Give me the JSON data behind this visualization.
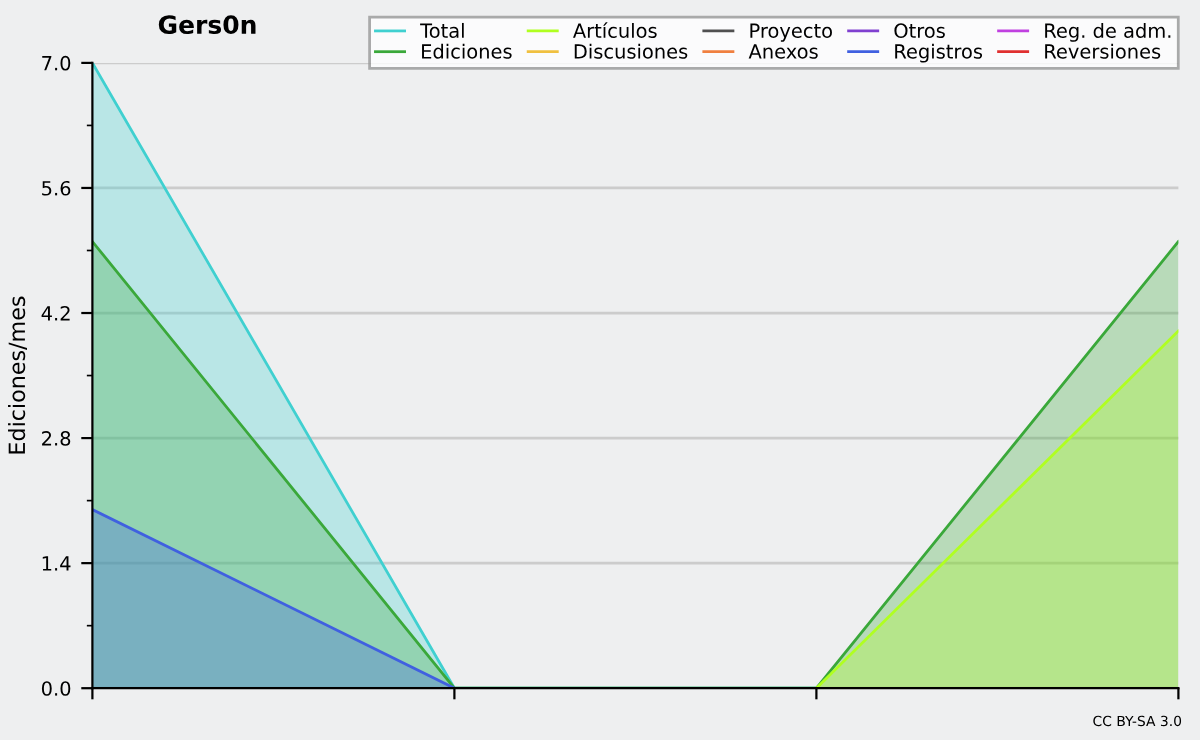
{
  "chart_data": {
    "type": "area",
    "title": "Gers0n",
    "ylabel": "Ediciones/mes",
    "categories": [
      null,
      null,
      null,
      null
    ],
    "ylim": [
      0,
      7
    ],
    "yticks": [
      {
        "value": 0,
        "label": "0.0"
      },
      {
        "value": 1.4,
        "label": "1.4"
      },
      {
        "value": 2.8,
        "label": "2.8"
      },
      {
        "value": 4.2,
        "label": "4.2"
      },
      {
        "value": 5.6,
        "label": "5.6"
      },
      {
        "value": 7,
        "label": "7.0"
      }
    ],
    "grid": "y",
    "legend": "top right",
    "annotations": [
      "CC BY-SA 3.0"
    ],
    "series": [
      {
        "name": "Total",
        "color": "#40d0d0",
        "values": [
          7,
          0,
          0,
          null
        ]
      },
      {
        "name": "Ediciones",
        "color": "#3aa83a",
        "values": [
          5,
          0,
          0,
          5
        ]
      },
      {
        "name": "Artículos",
        "color": "#b0ff20",
        "values": [
          null,
          null,
          0,
          4
        ]
      },
      {
        "name": "Discusiones",
        "color": "#f0c040",
        "values": [
          null,
          null,
          null,
          null
        ]
      },
      {
        "name": "Proyecto",
        "color": "#505050",
        "values": [
          null,
          null,
          null,
          null
        ]
      },
      {
        "name": "Anexos",
        "color": "#f08040",
        "values": [
          null,
          null,
          null,
          null
        ]
      },
      {
        "name": "Otros",
        "color": "#8040d0",
        "values": [
          null,
          null,
          null,
          null
        ]
      },
      {
        "name": "Registros",
        "color": "#4060e0",
        "values": [
          2,
          0,
          null,
          null
        ]
      },
      {
        "name": "Reg. de adm.",
        "color": "#c040e0",
        "values": [
          null,
          null,
          null,
          null
        ]
      },
      {
        "name": "Reversiones",
        "color": "#e03030",
        "values": [
          null,
          null,
          null,
          null
        ]
      }
    ]
  }
}
